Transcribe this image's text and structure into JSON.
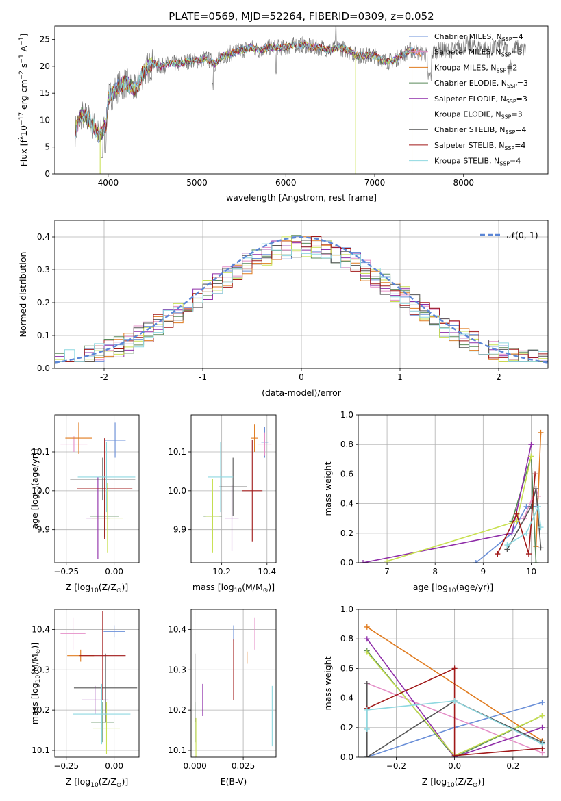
{
  "figure_title": "PLATE=0569, MJD=52264, FIBERID=0309, z=0.052",
  "models": [
    {
      "name": "Chabrier MILES, N_SSP=4",
      "label_main": "Chabrier MILES, N",
      "label_sub": "SSP",
      "label_tail": "=4",
      "color": "#6a8fd8"
    },
    {
      "name": "Salpeter MILES, N_SSP=3",
      "label_main": "Salpeter MILES, N",
      "label_sub": "SSP",
      "label_tail": "=3",
      "color": "#e58fc8"
    },
    {
      "name": "Kroupa MILES, N_SSP=2",
      "label_main": "Kroupa MILES, N",
      "label_sub": "SSP",
      "label_tail": "=2",
      "color": "#e07b1f"
    },
    {
      "name": "Chabrier ELODIE, N_SSP=3",
      "label_main": "Chabrier ELODIE, N",
      "label_sub": "SSP",
      "label_tail": "=3",
      "color": "#5a8a5a"
    },
    {
      "name": "Salpeter ELODIE, N_SSP=3",
      "label_main": "Salpeter ELODIE, N",
      "label_sub": "SSP",
      "label_tail": "=3",
      "color": "#8e2ca8"
    },
    {
      "name": "Kroupa ELODIE, N_SSP=3",
      "label_main": "Kroupa ELODIE, N",
      "label_sub": "SSP",
      "label_tail": "=3",
      "color": "#c8e050"
    },
    {
      "name": "Chabrier STELIB, N_SSP=4",
      "label_main": "Chabrier STELIB, N",
      "label_sub": "SSP",
      "label_tail": "=4",
      "color": "#555555"
    },
    {
      "name": "Salpeter STELIB, N_SSP=4",
      "label_main": "Salpeter STELIB, N",
      "label_sub": "SSP",
      "label_tail": "=4",
      "color": "#a01818"
    },
    {
      "name": "Kroupa STELIB, N_SSP=4",
      "label_main": "Kroupa STELIB, N",
      "label_sub": "SSP",
      "label_tail": "=4",
      "color": "#8fd8e0"
    }
  ],
  "chart_data": [
    {
      "id": "spectrum",
      "type": "line",
      "xlabel": "wavelength [Angstrom, rest frame]",
      "ylabel_parts": [
        "Flux [f",
        "λ",
        "10",
        "−17",
        " erg cm",
        "−2",
        " s",
        "−1",
        " A",
        "−1",
        "]"
      ],
      "xlim": [
        3400,
        8950
      ],
      "ylim": [
        0,
        27.5
      ],
      "xticks": [
        4000,
        5000,
        6000,
        7000,
        8000
      ],
      "yticks": [
        0,
        5,
        10,
        15,
        20,
        25
      ],
      "data_color": "#707070",
      "continuum": [
        [
          3630,
          8
        ],
        [
          3700,
          11
        ],
        [
          3800,
          10
        ],
        [
          3900,
          7
        ],
        [
          3980,
          9
        ],
        [
          4000,
          14
        ],
        [
          4100,
          16
        ],
        [
          4200,
          17
        ],
        [
          4300,
          15.5
        ],
        [
          4400,
          19
        ],
        [
          4500,
          20.5
        ],
        [
          4600,
          20
        ],
        [
          4700,
          20.5
        ],
        [
          4800,
          20.5
        ],
        [
          4900,
          21
        ],
        [
          5000,
          21
        ],
        [
          5100,
          21.5
        ],
        [
          5200,
          20.5
        ],
        [
          5300,
          22
        ],
        [
          5400,
          22.5
        ],
        [
          5500,
          23
        ],
        [
          5600,
          23.5
        ],
        [
          5700,
          23
        ],
        [
          5800,
          23.5
        ],
        [
          5900,
          23.5
        ],
        [
          6000,
          23.5
        ],
        [
          6100,
          24
        ],
        [
          6200,
          24
        ],
        [
          6300,
          23.5
        ],
        [
          6400,
          23.5
        ],
        [
          6500,
          23
        ],
        [
          6600,
          23.5
        ],
        [
          6700,
          23
        ],
        [
          6800,
          22
        ],
        [
          6900,
          22
        ],
        [
          7000,
          22
        ],
        [
          7100,
          21
        ],
        [
          7200,
          21
        ],
        [
          7300,
          22
        ],
        [
          7400,
          23
        ],
        [
          7500,
          22.5
        ],
        [
          7600,
          22
        ],
        [
          7700,
          23
        ],
        [
          7800,
          23
        ],
        [
          7900,
          23
        ],
        [
          8000,
          24
        ],
        [
          8100,
          24
        ],
        [
          8200,
          23.5
        ],
        [
          8300,
          23
        ],
        [
          8400,
          24
        ],
        [
          8500,
          23
        ],
        [
          8600,
          23.5
        ],
        [
          8700,
          23
        ]
      ],
      "model_end_wavelengths": [
        7550,
        7550,
        7520,
        7450,
        7440,
        7440,
        7440,
        7440,
        7440
      ],
      "drops": [
        {
          "model": 5,
          "x": 3910
        },
        {
          "model": 5,
          "x": 6785
        },
        {
          "model": 2,
          "x": 7420
        }
      ]
    },
    {
      "id": "residuals",
      "type": "histogram",
      "xlabel": "(data-model)/error",
      "ylabel": "Normed distribution",
      "xlim": [
        -2.5,
        2.5
      ],
      "ylim": [
        0,
        0.45
      ],
      "xticks": [
        -2,
        -1,
        0,
        1,
        2
      ],
      "yticks": [
        0.0,
        0.1,
        0.2,
        0.3,
        0.4
      ],
      "bin_width": 0.1,
      "legend": "𝒩(0, 1)",
      "reference_curve": {
        "mu": 0,
        "sigma": 1,
        "color": "#5b86d6"
      }
    },
    {
      "id": "age_vs_Z",
      "type": "errorbar",
      "xlabel_parts": [
        "Z [log",
        "10",
        "(Z/Z",
        "⊙",
        ")]"
      ],
      "ylabel_parts": [
        "age  [log",
        "10",
        "(age/yr)]"
      ],
      "xlim": [
        -0.31,
        0.13
      ],
      "ylim": [
        9.815,
        10.195
      ],
      "xticks": [
        -0.25,
        0.0
      ],
      "xtick_labels": [
        "−0.25",
        "0.00"
      ],
      "yticks": [
        9.9,
        10.0,
        10.1
      ],
      "points": [
        {
          "m": 0,
          "x": 0.005,
          "xerr": 0.055,
          "y": 10.13,
          "yerr": 0.045
        },
        {
          "m": 1,
          "x": -0.21,
          "xerr": 0.07,
          "y": 10.12,
          "yerr": 0.02
        },
        {
          "m": 2,
          "x": -0.185,
          "xerr": 0.07,
          "y": 10.135,
          "yerr": 0.04
        },
        {
          "m": 3,
          "x": -0.05,
          "xerr": 0.075,
          "y": 9.935,
          "yerr": 0.055
        },
        {
          "m": 4,
          "x": -0.085,
          "xerr": 0.06,
          "y": 9.93,
          "yerr": 0.105
        },
        {
          "m": 5,
          "x": -0.035,
          "xerr": 0.08,
          "y": 9.93,
          "yerr": 0.09
        },
        {
          "m": 6,
          "x": -0.06,
          "xerr": 0.17,
          "y": 10.03,
          "yerr": 0.055
        },
        {
          "m": 7,
          "x": -0.05,
          "xerr": 0.145,
          "y": 10.005,
          "yerr": 0.13
        },
        {
          "m": 8,
          "x": -0.04,
          "xerr": 0.15,
          "y": 10.035,
          "yerr": 0.09
        }
      ]
    },
    {
      "id": "age_vs_mass",
      "type": "errorbar",
      "xlabel_parts": [
        "mass [log",
        "10",
        "(M/M",
        "⊙",
        ")]"
      ],
      "xlim": [
        10.065,
        10.44
      ],
      "ylim": [
        9.815,
        10.195
      ],
      "xticks": [
        10.2,
        10.4
      ],
      "xtick_labels": [
        "10.2",
        "10.4"
      ],
      "yticks": [
        9.9,
        10.0,
        10.1
      ],
      "points": [
        {
          "m": 0,
          "x": 10.39,
          "xerr": 0.015,
          "y": 10.125,
          "yerr": 0.04
        },
        {
          "m": 1,
          "x": 10.39,
          "xerr": 0.03,
          "y": 10.12,
          "yerr": 0.03
        },
        {
          "m": 2,
          "x": 10.345,
          "xerr": 0.015,
          "y": 10.135,
          "yerr": 0.035
        },
        {
          "m": 3,
          "x": 10.16,
          "xerr": 0.04,
          "y": 9.935,
          "yerr": 0.06
        },
        {
          "m": 4,
          "x": 10.245,
          "xerr": 0.03,
          "y": 9.93,
          "yerr": 0.085
        },
        {
          "m": 5,
          "x": 10.16,
          "xerr": 0.03,
          "y": 9.935,
          "yerr": 0.095
        },
        {
          "m": 6,
          "x": 10.25,
          "xerr": 0.06,
          "y": 10.01,
          "yerr": 0.075
        },
        {
          "m": 7,
          "x": 10.335,
          "xerr": 0.045,
          "y": 10.0,
          "yerr": 0.13
        },
        {
          "m": 8,
          "x": 10.195,
          "xerr": 0.055,
          "y": 10.035,
          "yerr": 0.09
        }
      ]
    },
    {
      "id": "weight_vs_age",
      "type": "line",
      "xlabel_parts": [
        "age  [log",
        "10",
        "(age/yr)]"
      ],
      "ylabel": "mass weight",
      "xlim": [
        6.4,
        10.35
      ],
      "ylim": [
        0,
        1
      ],
      "xticks": [
        7,
        8,
        9,
        10
      ],
      "yticks": [
        0.0,
        0.2,
        0.4,
        0.6,
        0.8,
        1.0
      ],
      "series": [
        {
          "m": 0,
          "pts": [
            [
              8.85,
              0.0
            ],
            [
              9.6,
              0.2
            ],
            [
              9.9,
              0.38
            ],
            [
              10.1,
              0.38
            ]
          ]
        },
        {
          "m": 1,
          "pts": [
            [
              9.85,
              0.3
            ],
            [
              10.1,
              0.5
            ],
            [
              10.15,
              0.45
            ]
          ]
        },
        {
          "m": 2,
          "pts": [
            [
              10.1,
              0.11
            ],
            [
              10.2,
              0.88
            ]
          ]
        },
        {
          "m": 3,
          "pts": [
            [
              9.6,
              0.28
            ],
            [
              10.0,
              0.72
            ],
            [
              10.1,
              0.0
            ]
          ]
        },
        {
          "m": 4,
          "pts": [
            [
              6.5,
              0.0
            ],
            [
              9.6,
              0.2
            ],
            [
              10.0,
              0.8
            ]
          ]
        },
        {
          "m": 5,
          "pts": [
            [
              7.0,
              0.01
            ],
            [
              9.7,
              0.28
            ],
            [
              10.0,
              0.72
            ]
          ]
        },
        {
          "m": 6,
          "pts": [
            [
              9.5,
              0.09
            ],
            [
              10.0,
              0.38
            ],
            [
              10.1,
              0.5
            ],
            [
              10.2,
              0.1
            ]
          ]
        },
        {
          "m": 7,
          "pts": [
            [
              9.3,
              0.06
            ],
            [
              9.7,
              0.33
            ],
            [
              9.95,
              0.06
            ],
            [
              10.08,
              0.6
            ]
          ]
        },
        {
          "m": 8,
          "pts": [
            [
              9.5,
              0.12
            ],
            [
              9.9,
              0.2
            ],
            [
              10.15,
              0.38
            ],
            [
              10.2,
              0.24
            ]
          ]
        }
      ]
    },
    {
      "id": "mass_vs_Z",
      "type": "errorbar",
      "xlabel_parts": [
        "Z [log",
        "10",
        "(Z/Z",
        "⊙",
        ")]"
      ],
      "ylabel_parts": [
        "mass [log",
        "10",
        "(M/M",
        "⊙",
        ")]"
      ],
      "xlim": [
        -0.31,
        0.13
      ],
      "ylim": [
        10.083,
        10.45
      ],
      "xticks": [
        -0.25,
        0.0
      ],
      "xtick_labels": [
        "−0.25",
        "0.00"
      ],
      "yticks": [
        10.1,
        10.2,
        10.3,
        10.4
      ],
      "points": [
        {
          "m": 0,
          "x": 0.0,
          "xerr": 0.055,
          "y": 10.395,
          "yerr": 0.015
        },
        {
          "m": 1,
          "x": -0.215,
          "xerr": 0.065,
          "y": 10.39,
          "yerr": 0.04
        },
        {
          "m": 2,
          "x": -0.175,
          "xerr": 0.07,
          "y": 10.335,
          "yerr": 0.015
        },
        {
          "m": 3,
          "x": -0.06,
          "xerr": 0.06,
          "y": 10.17,
          "yerr": 0.05
        },
        {
          "m": 4,
          "x": -0.1,
          "xerr": 0.07,
          "y": 10.225,
          "yerr": 0.035
        },
        {
          "m": 5,
          "x": -0.04,
          "xerr": 0.07,
          "y": 10.155,
          "yerr": 0.065
        },
        {
          "m": 6,
          "x": -0.045,
          "xerr": 0.165,
          "y": 10.255,
          "yerr": 0.085
        },
        {
          "m": 7,
          "x": -0.06,
          "xerr": 0.12,
          "y": 10.335,
          "yerr": 0.11
        },
        {
          "m": 8,
          "x": -0.065,
          "xerr": 0.15,
          "y": 10.19,
          "yerr": 0.075
        }
      ]
    },
    {
      "id": "mass_vs_ebv",
      "type": "errorbar",
      "xlabel": "E(B-V)",
      "xlim": [
        -0.002,
        0.042
      ],
      "ylim": [
        10.083,
        10.45
      ],
      "xticks": [
        0.0,
        0.025
      ],
      "xtick_labels": [
        "0.000",
        "0.025"
      ],
      "yticks": [
        10.1,
        10.2,
        10.3,
        10.4
      ],
      "points": [
        {
          "m": 0,
          "x": 0.02,
          "xerr": 0,
          "y": 10.39,
          "yerr": 0.02
        },
        {
          "m": 1,
          "x": 0.031,
          "xerr": 0,
          "y": 10.39,
          "yerr": 0.04
        },
        {
          "m": 2,
          "x": 0.027,
          "xerr": 0,
          "y": 10.33,
          "yerr": 0.015
        },
        {
          "m": 3,
          "x": 0.0,
          "xerr": 0,
          "y": 10.17,
          "yerr": 0.05
        },
        {
          "m": 4,
          "x": 0.004,
          "xerr": 0,
          "y": 10.225,
          "yerr": 0.04
        },
        {
          "m": 5,
          "x": 0.0005,
          "xerr": 0,
          "y": 10.13,
          "yerr": 0.05
        },
        {
          "m": 6,
          "x": 0.0,
          "xerr": 0,
          "y": 10.255,
          "yerr": 0.085
        },
        {
          "m": 7,
          "x": 0.02,
          "xerr": 0,
          "y": 10.3,
          "yerr": 0.075
        },
        {
          "m": 8,
          "x": 0.04,
          "xerr": 0,
          "y": 10.185,
          "yerr": 0.075
        }
      ]
    },
    {
      "id": "weight_vs_Z",
      "type": "line",
      "xlabel_parts": [
        "Z [log",
        "10",
        "(Z/Z",
        "⊙",
        ")]"
      ],
      "ylabel": "mass weight",
      "xlim": [
        -0.33,
        0.32
      ],
      "ylim": [
        0,
        1
      ],
      "xticks": [
        -0.2,
        0.0,
        0.2
      ],
      "xtick_labels": [
        "−0.2",
        "0.0",
        "0.2"
      ],
      "yticks": [
        0.0,
        0.2,
        0.4,
        0.6,
        0.8,
        1.0
      ],
      "series": [
        {
          "m": 0,
          "pts": [
            [
              -0.3,
              0.0
            ],
            [
              0.0,
              0.2
            ],
            [
              0.3,
              0.37
            ]
          ]
        },
        {
          "m": 1,
          "pts": [
            [
              -0.3,
              0.5
            ],
            [
              0.3,
              0.03
            ]
          ]
        },
        {
          "m": 2,
          "pts": [
            [
              -0.3,
              0.88
            ],
            [
              0.3,
              0.11
            ]
          ]
        },
        {
          "m": 3,
          "pts": [
            [
              -0.3,
              0.72
            ],
            [
              0.0,
              0.0
            ],
            [
              0.3,
              0.28
            ]
          ]
        },
        {
          "m": 4,
          "pts": [
            [
              -0.3,
              0.8
            ],
            [
              0.0,
              0.0
            ],
            [
              0.3,
              0.2
            ]
          ]
        },
        {
          "m": 5,
          "pts": [
            [
              -0.3,
              0.71
            ],
            [
              0.0,
              0.01
            ],
            [
              0.3,
              0.28
            ]
          ]
        },
        {
          "m": 6,
          "pts": [
            [
              -0.3,
              0.5
            ],
            [
              -0.3,
              0.0
            ],
            [
              0.0,
              0.38
            ],
            [
              0.3,
              0.1
            ]
          ]
        },
        {
          "m": 7,
          "pts": [
            [
              -0.3,
              0.33
            ],
            [
              0.0,
              0.6
            ],
            [
              0.0,
              0.01
            ],
            [
              0.3,
              0.06
            ]
          ]
        },
        {
          "m": 8,
          "pts": [
            [
              -0.3,
              0.19
            ],
            [
              -0.3,
              0.32
            ],
            [
              0.0,
              0.38
            ],
            [
              0.3,
              0.09
            ]
          ]
        }
      ]
    }
  ]
}
